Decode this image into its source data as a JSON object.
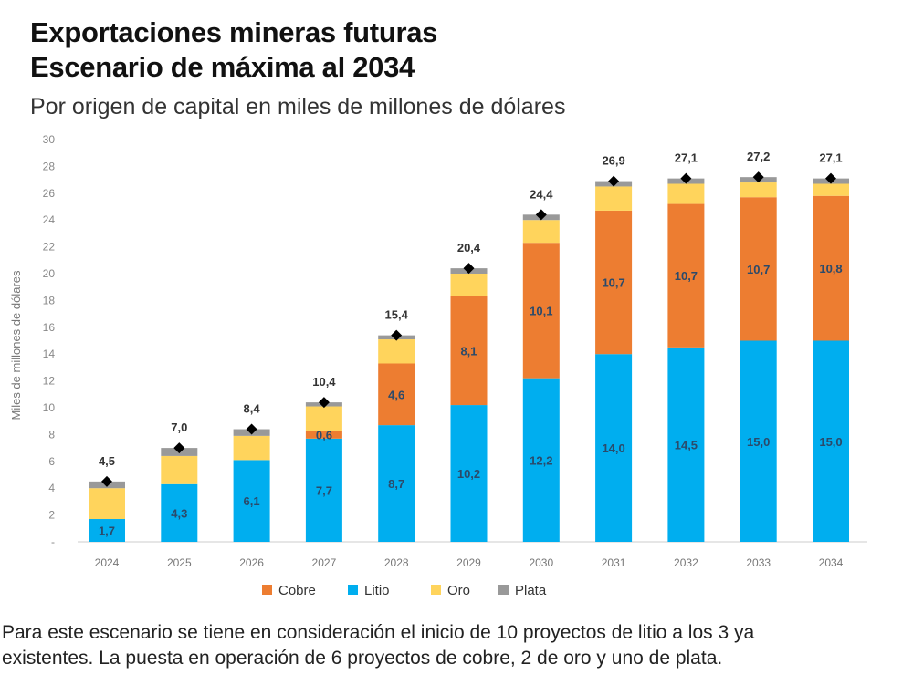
{
  "title_line1": "Exportaciones mineras futuras",
  "title_line2": "Escenario de máxima al 2034",
  "subtitle": "Por origen de capital en miles de millones de dólares",
  "footnote_line1": "Para este escenario se  tiene en consideración el inicio de 10 proyectos de litio a los 3 ya",
  "footnote_line2": "existentes. La puesta en operación de 6 proyectos de cobre, 2 de oro y uno de plata.",
  "chart_data": {
    "type": "bar",
    "stacked": true,
    "ylabel": "Miles de millones de dólares",
    "ylim": [
      0,
      30
    ],
    "yticks": [
      "-",
      "2",
      "4",
      "6",
      "8",
      "10",
      "12",
      "14",
      "16",
      "18",
      "20",
      "22",
      "24",
      "26",
      "28",
      "30"
    ],
    "categories": [
      "2024",
      "2025",
      "2026",
      "2027",
      "2028",
      "2029",
      "2030",
      "2031",
      "2032",
      "2033",
      "2034"
    ],
    "series": [
      {
        "name": "Litio",
        "color": "#00AEEF",
        "values": [
          1.7,
          4.3,
          6.1,
          7.7,
          8.7,
          10.2,
          12.2,
          14.0,
          14.5,
          15.0,
          15.0
        ],
        "labels": [
          "1,7",
          "4,3",
          "6,1",
          "7,7",
          "8,7",
          "10,2",
          "12,2",
          "14,0",
          "14,5",
          "15,0",
          "15,0"
        ]
      },
      {
        "name": "Cobre",
        "color": "#ED7D31",
        "values": [
          0,
          0,
          0,
          0.6,
          4.6,
          8.1,
          10.1,
          10.7,
          10.7,
          10.7,
          10.8
        ],
        "labels": [
          "",
          "",
          "",
          "0,6",
          "4,6",
          "8,1",
          "10,1",
          "10,7",
          "10,7",
          "10,7",
          "10,8"
        ]
      },
      {
        "name": "Oro",
        "color": "#FFD45C",
        "values": [
          2.3,
          2.1,
          1.8,
          1.8,
          1.8,
          1.7,
          1.7,
          1.8,
          1.5,
          1.1,
          0.9
        ]
      },
      {
        "name": "Plata",
        "color": "#999999",
        "values": [
          0.5,
          0.6,
          0.5,
          0.3,
          0.3,
          0.4,
          0.4,
          0.4,
          0.4,
          0.4,
          0.4
        ]
      }
    ],
    "totals": [
      4.5,
      7.0,
      8.4,
      10.4,
      15.4,
      20.4,
      24.4,
      26.9,
      27.1,
      27.2,
      27.1
    ],
    "total_labels": [
      "4,5",
      "7,0",
      "8,4",
      "10,4",
      "15,4",
      "20,4",
      "24,4",
      "26,9",
      "27,1",
      "27,2",
      "27,1"
    ],
    "legend_order": [
      "Cobre",
      "Litio",
      "Oro",
      "Plata"
    ],
    "legend": "bottom",
    "grid": false
  }
}
